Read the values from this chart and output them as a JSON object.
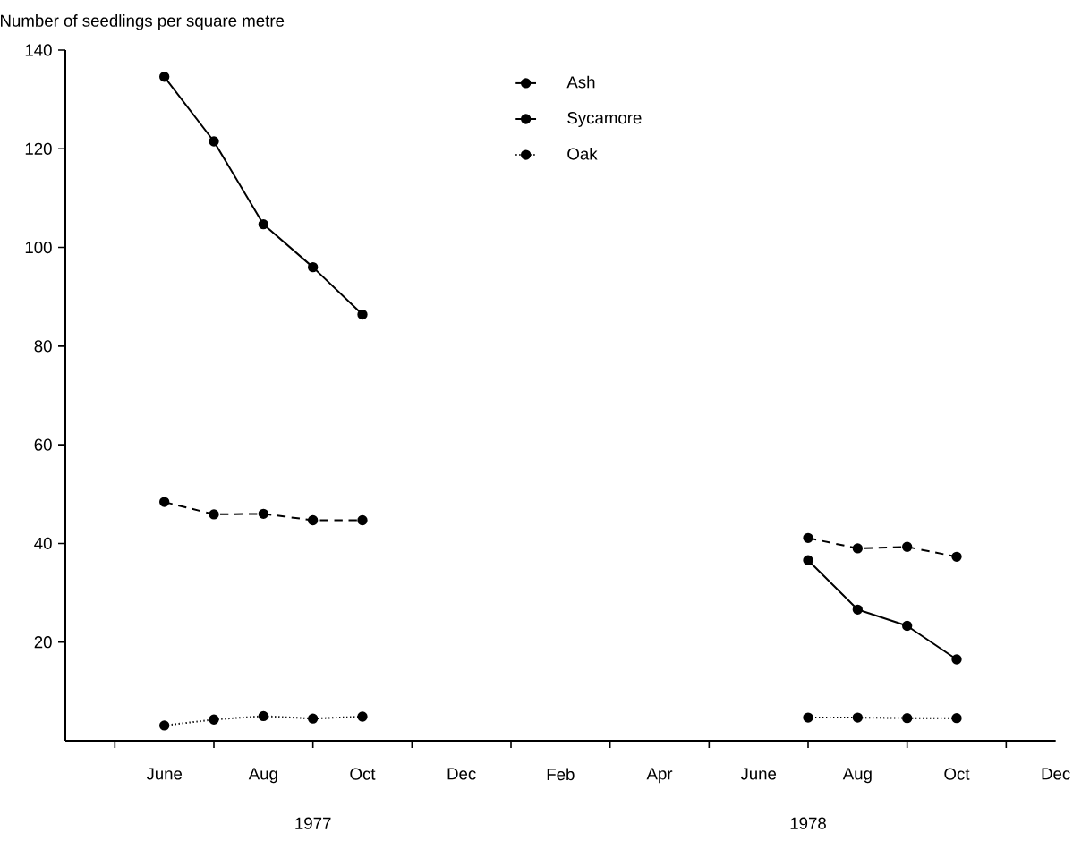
{
  "chart_data": {
    "type": "line",
    "ylabel": "Number of seedlings per square metre",
    "x": [
      "1977-06",
      "1977-07",
      "1977-08",
      "1977-09",
      "1977-10",
      "1978-06",
      "1978-07",
      "1978-08",
      "1978-09",
      "1978-10"
    ],
    "series": [
      {
        "name": "Ash",
        "color": "#000000",
        "line_style": "solid",
        "values": [
          134.6,
          121.5,
          104.7,
          96,
          86.4,
          null,
          36.6,
          26.6,
          23.3,
          16.5
        ]
      },
      {
        "name": "Sycamore",
        "color": "#000000",
        "line_style": "dashed",
        "values": [
          48.4,
          45.9,
          46.0,
          44.7,
          44.7,
          null,
          41.1,
          39.0,
          39.3,
          37.3
        ]
      },
      {
        "name": "Oak",
        "color": "#000000",
        "line_style": "dotted",
        "values": [
          3.1,
          4.3,
          5.0,
          4.5,
          4.9,
          null,
          4.7,
          4.7,
          4.6,
          4.6
        ]
      }
    ],
    "xlim": [
      "1977-04",
      "1978-12"
    ],
    "xticks": [
      {
        "value": "1977-05",
        "label": null
      },
      {
        "value": "1977-06",
        "label": "June"
      },
      {
        "value": "1977-07",
        "label": null
      },
      {
        "value": "1977-08",
        "label": "Aug"
      },
      {
        "value": "1977-09",
        "label": null
      },
      {
        "value": "1977-10",
        "label": "Oct"
      },
      {
        "value": "1977-11",
        "label": null
      },
      {
        "value": "1977-12",
        "label": "Dec"
      },
      {
        "value": "1978-01",
        "label": null
      },
      {
        "value": "1978-02",
        "label": "Feb"
      },
      {
        "value": "1978-03",
        "label": null
      },
      {
        "value": "1978-04",
        "label": "Apr"
      },
      {
        "value": "1978-05",
        "label": null
      },
      {
        "value": "1978-06",
        "label": "June"
      },
      {
        "value": "1978-07",
        "label": null
      },
      {
        "value": "1978-08",
        "label": "Aug"
      },
      {
        "value": "1978-09",
        "label": null
      },
      {
        "value": "1978-10",
        "label": "Oct"
      },
      {
        "value": "1978-11",
        "label": null
      },
      {
        "value": "1978-12",
        "label": "Dec"
      }
    ],
    "ylim": [
      0,
      140
    ],
    "yticks": [
      20,
      40,
      60,
      80,
      100,
      120,
      140
    ],
    "annotations": [
      "1977",
      "1978"
    ],
    "marker": "circle",
    "legend": "top",
    "grid": false
  }
}
